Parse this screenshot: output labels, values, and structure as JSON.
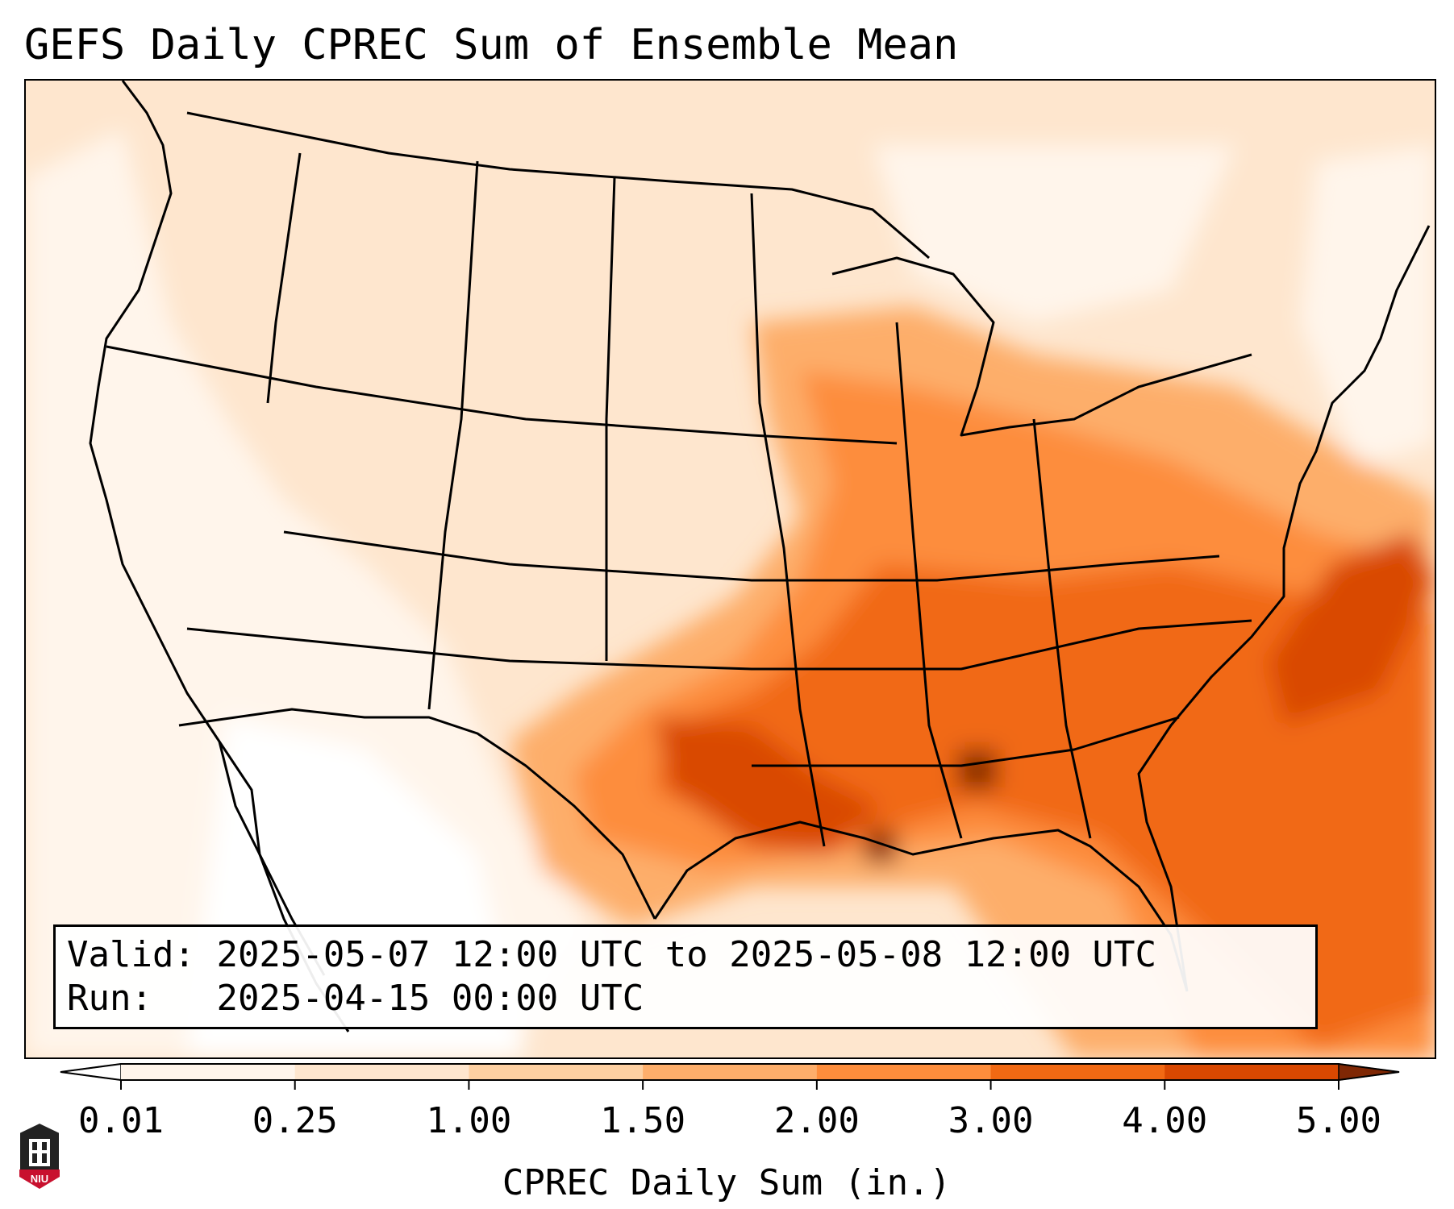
{
  "title": "GEFS Daily CPREC Sum of Ensemble Mean",
  "info": {
    "valid_label": "Valid:",
    "valid_value": "2025-05-07 12:00 UTC to 2025-05-08 12:00 UTC",
    "run_label": "Run:",
    "run_value": "2025-04-15 00:00 UTC"
  },
  "colorbar": {
    "label": "CPREC Daily Sum (in.)",
    "ticks": [
      "0.01",
      "0.25",
      "1.00",
      "1.50",
      "2.00",
      "3.00",
      "4.00",
      "5.00"
    ],
    "colors": [
      "#fff5eb",
      "#fee6ce",
      "#fdd0a2",
      "#fdae6b",
      "#fd8d3c",
      "#f16913",
      "#d94801",
      "#8c2d04"
    ],
    "under_color": "#ffffff",
    "over_color": "#7f2704"
  },
  "map": {
    "projection": "Lambert Conformal",
    "region": "CONUS",
    "background_color": "#fff5eb",
    "land_color": "#fee6ce",
    "boundary_color": "#000000"
  },
  "logo": {
    "text": "NIU",
    "icon": "university-tower-icon",
    "color": "#c8102e"
  }
}
